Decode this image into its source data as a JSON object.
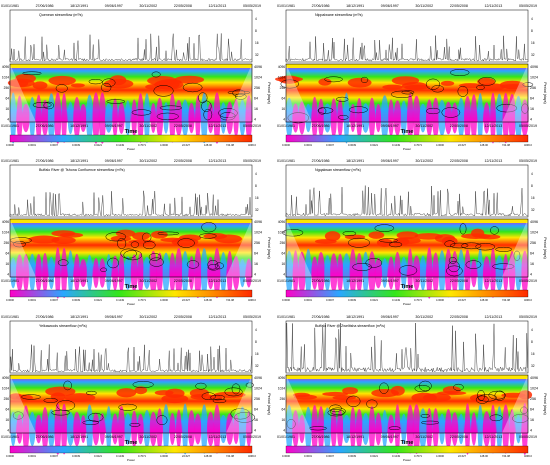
{
  "figure": {
    "date_ticks": [
      "01/01/1981",
      "27/06/1986",
      "18/12/1991",
      "09/06/1997",
      "30/11/2002",
      "22/05/2008",
      "12/11/2013",
      "05/05/2019"
    ],
    "period_ticks": [
      "4096",
      "1024",
      "256",
      "64",
      "16",
      "4"
    ],
    "period_label": "Period (days)",
    "x_label": "Time",
    "power_label": "Power",
    "colorbar_ticks": [
      "0.0000",
      "0.0001",
      "0.0007",
      "0.0039",
      "0.0221",
      "0.1249",
      "0.7071",
      "4.0000",
      "22.627",
      "128.00",
      "724.08",
      "4096.0"
    ],
    "colors": {
      "low": "#ff00c8",
      "mid_low": "#2aa7ff",
      "mid": "#33e61a",
      "mid_high": "#ffe600",
      "high": "#ff2a00",
      "contour": "#000000"
    }
  },
  "chart_data": [
    {
      "type": "heatmap",
      "title": "Quenean streamflow (m³/s)",
      "x": [
        "01/01/1981",
        "27/06/1986",
        "18/12/1991",
        "09/06/1997",
        "30/11/2002",
        "22/05/2008",
        "12/11/2013",
        "05/05/2019"
      ],
      "y_ticks": [
        "4096",
        "1024",
        "256",
        "64",
        "16",
        "4"
      ],
      "ylabel": "Period (days)",
      "xlabel": "Time",
      "colorbar_label": "Power"
    },
    {
      "type": "heatmap",
      "title": "Nippalwane streamflow (m³/s)",
      "x": [
        "01/01/1981",
        "27/06/1986",
        "18/12/1991",
        "09/06/1997",
        "30/11/2002",
        "22/05/2008",
        "12/11/2013",
        "05/05/2019"
      ],
      "y_ticks": [
        "4096",
        "1024",
        "256",
        "64",
        "16",
        "4"
      ],
      "ylabel": "Period (days)",
      "xlabel": "Time",
      "colorbar_label": "Power"
    },
    {
      "type": "heatmap",
      "title": "Buffalo River @ Tshona Confluence streamflow (m³/s)",
      "x": [
        "01/01/1981",
        "27/06/1986",
        "18/12/1991",
        "09/06/1997",
        "30/11/2002",
        "22/05/2008",
        "12/11/2013",
        "05/05/2019"
      ],
      "y_ticks": [
        "4096",
        "1024",
        "256",
        "64",
        "16",
        "4"
      ],
      "ylabel": "Period (days)",
      "xlabel": "Time",
      "colorbar_label": "Power"
    },
    {
      "type": "heatmap",
      "title": "Ngqakwan streamflow (m³/s)",
      "x": [
        "01/01/1981",
        "27/06/1986",
        "18/12/1991",
        "09/06/1997",
        "30/11/2002",
        "22/05/2008",
        "12/11/2013",
        "05/05/2019"
      ],
      "y_ticks": [
        "4096",
        "1024",
        "256",
        "64",
        "16",
        "4"
      ],
      "ylabel": "Period (days)",
      "xlabel": "Time",
      "colorbar_label": "Power"
    },
    {
      "type": "heatmap",
      "title": "Yelkawoods streamflow (m³/s)",
      "x": [
        "01/01/1981",
        "27/06/1986",
        "18/12/1991",
        "09/06/1997",
        "30/11/2002",
        "22/05/2008",
        "12/11/2013",
        "05/05/2019"
      ],
      "y_ticks": [
        "4096",
        "1024",
        "256",
        "64",
        "16",
        "4"
      ],
      "ylabel": "Period (days)",
      "xlabel": "Time",
      "colorbar_label": "Power"
    },
    {
      "type": "heatmap",
      "title": "Buffalo River @ Zwelitsha streamflow (m³/s)",
      "x": [
        "01/01/1981",
        "27/06/1986",
        "18/12/1991",
        "09/06/1997",
        "30/11/2002",
        "22/05/2008",
        "12/11/2013",
        "05/05/2019"
      ],
      "y_ticks": [
        "4096",
        "1024",
        "256",
        "64",
        "16",
        "4"
      ],
      "ylabel": "Period (days)",
      "xlabel": "Time",
      "colorbar_label": "Power"
    }
  ]
}
